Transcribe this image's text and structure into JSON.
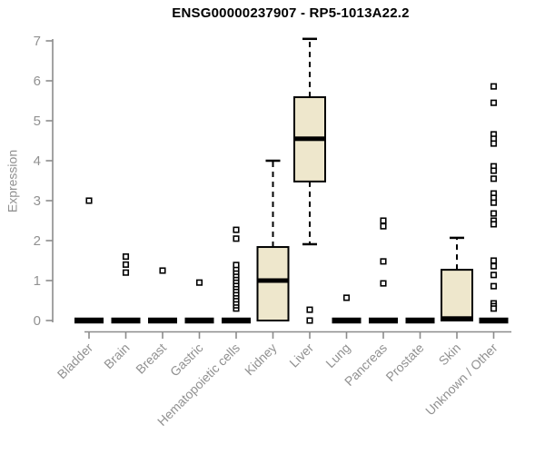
{
  "chart_data": {
    "type": "boxplot",
    "title": "ENSG00000237907 - RP5-1013A22.2",
    "ylabel": "Expression",
    "xlabel": "",
    "ylim": [
      0,
      7
    ],
    "yticks": [
      0,
      1,
      2,
      3,
      4,
      5,
      6,
      7
    ],
    "grid": false,
    "legend": false,
    "colors": {
      "box_fill": "#EEE7CC",
      "box_stroke": "#000000",
      "median": "#000000",
      "flat_bar": "#000000",
      "outlier_stroke": "#000000",
      "axis": "#8C8C8C",
      "tick_label": "#919191",
      "title": "#000000",
      "background": "#FFFFFF"
    },
    "categories": [
      "Bladder",
      "Brain",
      "Breast",
      "Gastric",
      "Hematopoietic cells",
      "Kidney",
      "Liver",
      "Lung",
      "Pancreas",
      "Prostate",
      "Skin",
      "Unknown / Other"
    ],
    "series": [
      {
        "label": "Bladder",
        "type": "flat",
        "value": 0,
        "outliers": [
          3.0
        ]
      },
      {
        "label": "Brain",
        "type": "flat",
        "value": 0,
        "outliers": [
          1.2,
          1.4,
          1.6
        ]
      },
      {
        "label": "Breast",
        "type": "flat",
        "value": 0,
        "outliers": [
          1.25
        ]
      },
      {
        "label": "Gastric",
        "type": "flat",
        "value": 0,
        "outliers": [
          0.95
        ]
      },
      {
        "label": "Hematopoietic cells",
        "type": "flat",
        "value": 0,
        "outliers": [
          0.3,
          0.38,
          0.45,
          0.53,
          0.61,
          0.68,
          0.76,
          0.84,
          0.91,
          0.99,
          1.07,
          1.14,
          1.22,
          1.3,
          1.39,
          2.05,
          2.27
        ]
      },
      {
        "label": "Kidney",
        "type": "box",
        "q1": 0,
        "median": 1.0,
        "q3": 1.84,
        "whisker_low": 0,
        "whisker_high": 4.0,
        "outliers": []
      },
      {
        "label": "Liver",
        "type": "box",
        "q1": 3.48,
        "median": 4.55,
        "q3": 5.59,
        "whisker_low": 1.91,
        "whisker_high": 7.05,
        "outliers": [
          0.27,
          0.0
        ]
      },
      {
        "label": "Lung",
        "type": "flat",
        "value": 0,
        "outliers": [
          0.57
        ]
      },
      {
        "label": "Pancreas",
        "type": "flat",
        "value": 0,
        "outliers": [
          0.93,
          1.48,
          2.36,
          2.5
        ]
      },
      {
        "label": "Prostate",
        "type": "flat",
        "value": 0,
        "outliers": []
      },
      {
        "label": "Skin",
        "type": "box",
        "q1": 0,
        "median": 0.05,
        "q3": 1.27,
        "whisker_low": 0,
        "whisker_high": 2.07,
        "outliers": []
      },
      {
        "label": "Unknown / Other",
        "type": "flat",
        "value": 0,
        "outliers": [
          5.86,
          5.45,
          4.66,
          4.55,
          4.43,
          3.86,
          3.75,
          3.55,
          3.18,
          3.07,
          2.95,
          2.68,
          2.5,
          2.41,
          1.5,
          1.36,
          1.14,
          0.86,
          0.43,
          0.36,
          0.3
        ]
      }
    ]
  }
}
